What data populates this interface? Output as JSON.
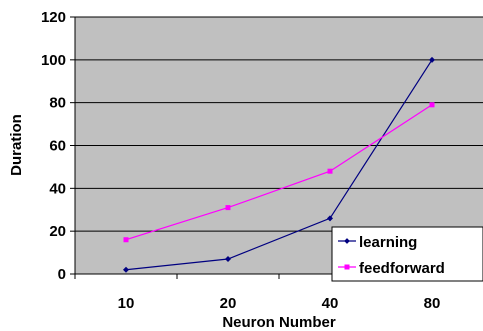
{
  "chart_data": {
    "type": "line",
    "title": "",
    "xlabel": "Neuron Number",
    "ylabel": "Duration",
    "categories": [
      "10",
      "20",
      "40",
      "80"
    ],
    "ylim": [
      0,
      120
    ],
    "yticks": [
      "0",
      "20",
      "40",
      "60",
      "80",
      "100",
      "120"
    ],
    "grid": "horizontal",
    "plot_background": "#c0c0c0",
    "legend_position": "bottom-right",
    "series": [
      {
        "name": "learning",
        "values": [
          2,
          7,
          26,
          100
        ],
        "color": "#000080",
        "marker": "diamond"
      },
      {
        "name": "feedforward",
        "values": [
          16,
          31,
          48,
          79
        ],
        "color": "#ff00ff",
        "marker": "square"
      }
    ]
  }
}
